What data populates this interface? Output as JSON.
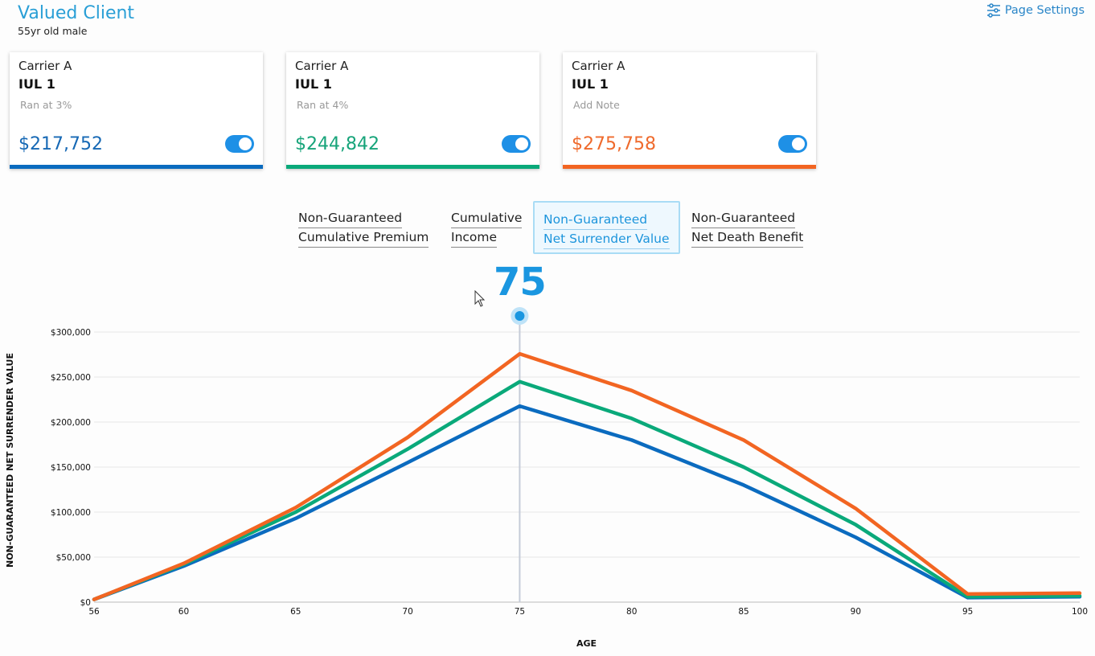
{
  "header": {
    "title": "Valued Client",
    "subtitle": "55yr old male",
    "settings_label": "Page Settings",
    "settings_icon": "sliders-icon"
  },
  "cards": [
    {
      "carrier": "Carrier A",
      "product": "IUL 1",
      "note": "Ran at 3%",
      "amount": "$217,752",
      "color": "#0b6bbf",
      "enabled": true
    },
    {
      "carrier": "Carrier A",
      "product": "IUL 1",
      "note": "Ran at 4%",
      "amount": "$244,842",
      "color": "#0aa97a",
      "enabled": true
    },
    {
      "carrier": "Carrier A",
      "product": "IUL 1",
      "note": "Add Note",
      "amount": "$275,758",
      "color": "#f26522",
      "enabled": true
    }
  ],
  "tabs": [
    {
      "line1": "Non-Guaranteed",
      "line2": "Cumulative Premium",
      "active": false
    },
    {
      "line1": "Cumulative",
      "line2": "Income",
      "active": false
    },
    {
      "line1": "Non-Guaranteed",
      "line2": "Net Surrender Value",
      "active": true
    },
    {
      "line1": "Non-Guaranteed",
      "line2": "Net Death Benefit",
      "active": false
    }
  ],
  "selected_age": "75",
  "chart_data": {
    "type": "line",
    "xlabel": "AGE",
    "ylabel": "NON-GUARANTEED NET SURRENDER VALUE",
    "xlim": [
      56,
      100
    ],
    "ylim": [
      0,
      300000
    ],
    "x_ticks": [
      56,
      60,
      65,
      70,
      75,
      80,
      85,
      90,
      95,
      100
    ],
    "y_ticks": [
      0,
      50000,
      100000,
      150000,
      200000,
      250000,
      300000
    ],
    "y_tick_labels": [
      "$0",
      "$50,000",
      "$100,000",
      "$150,000",
      "$200,000",
      "$250,000",
      "$300,000"
    ],
    "grid": true,
    "highlight_x": 75,
    "series": [
      {
        "color": "#0b6bbf",
        "points": [
          [
            56,
            3000
          ],
          [
            60,
            40000
          ],
          [
            65,
            93000
          ],
          [
            70,
            155000
          ],
          [
            75,
            217752
          ],
          [
            80,
            180000
          ],
          [
            85,
            130000
          ],
          [
            90,
            72000
          ],
          [
            95,
            5000
          ],
          [
            100,
            6000
          ]
        ]
      },
      {
        "color": "#0aa97a",
        "points": [
          [
            56,
            3000
          ],
          [
            60,
            42000
          ],
          [
            65,
            100000
          ],
          [
            70,
            170000
          ],
          [
            75,
            244842
          ],
          [
            80,
            204000
          ],
          [
            85,
            150000
          ],
          [
            90,
            86000
          ],
          [
            95,
            6000
          ],
          [
            100,
            7000
          ]
        ]
      },
      {
        "color": "#f26522",
        "points": [
          [
            56,
            3000
          ],
          [
            60,
            43000
          ],
          [
            65,
            105000
          ],
          [
            70,
            183000
          ],
          [
            75,
            275758
          ],
          [
            80,
            235000
          ],
          [
            85,
            180000
          ],
          [
            90,
            104000
          ],
          [
            95,
            9000
          ],
          [
            100,
            10000
          ]
        ]
      }
    ]
  }
}
